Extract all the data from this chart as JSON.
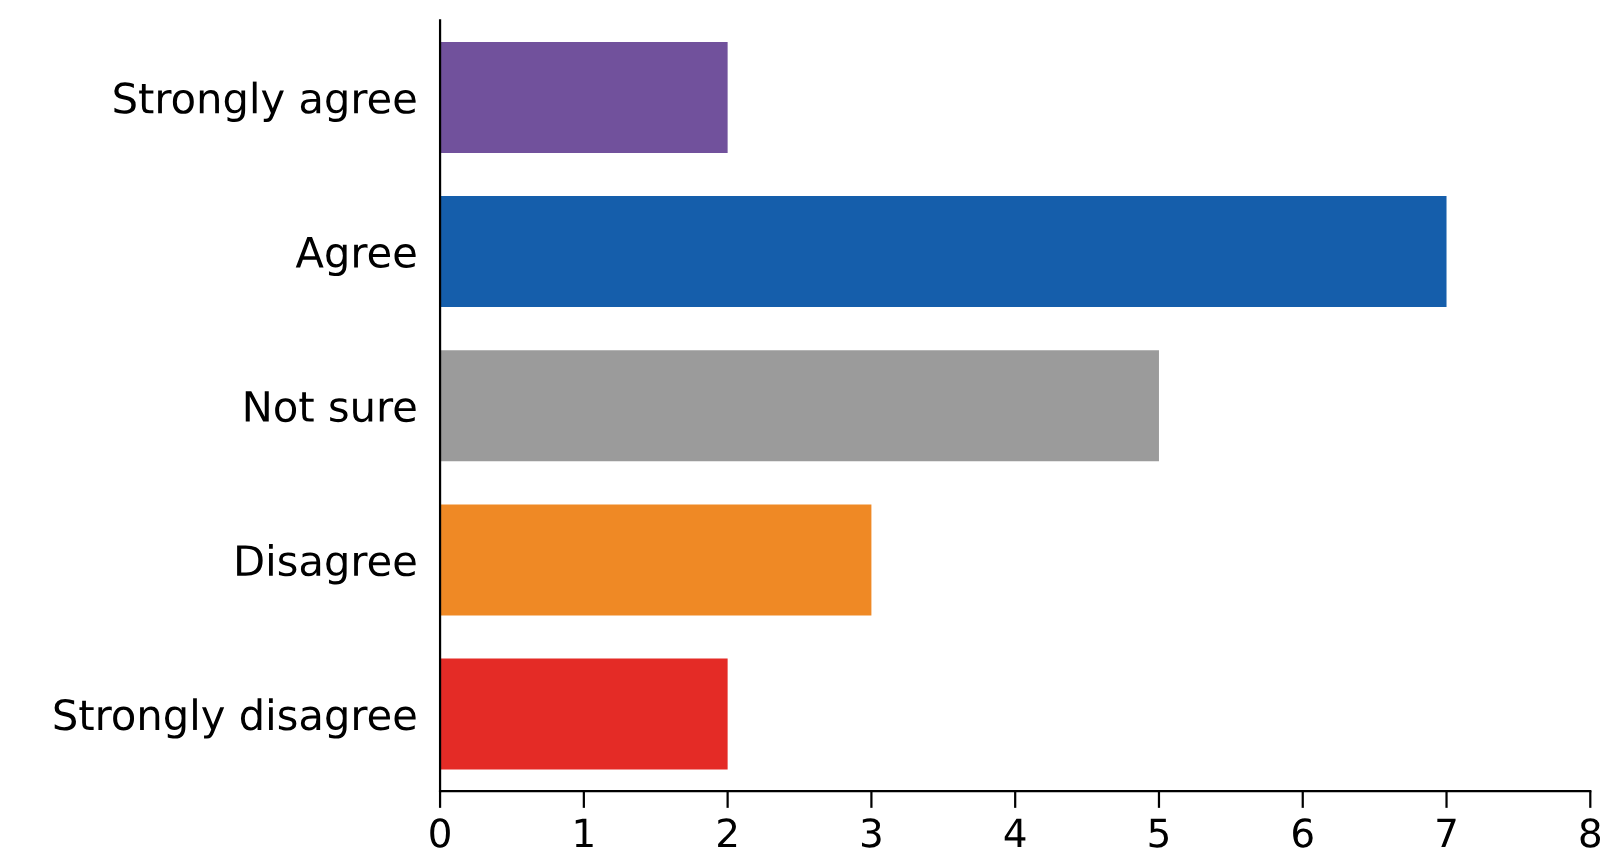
{
  "chart_data": {
    "type": "bar",
    "orientation": "horizontal",
    "categories": [
      "Strongly agree",
      "Agree",
      "Not sure",
      "Disagree",
      "Strongly disagree"
    ],
    "values": [
      2,
      7,
      5,
      3,
      2
    ],
    "colors": [
      "#71519c",
      "#155eab",
      "#9b9b9b",
      "#ef8925",
      "#e42b26"
    ],
    "xlim": [
      0,
      8
    ],
    "xticks": [
      0,
      1,
      2,
      3,
      4,
      5,
      6,
      7,
      8
    ],
    "grid": false
  }
}
